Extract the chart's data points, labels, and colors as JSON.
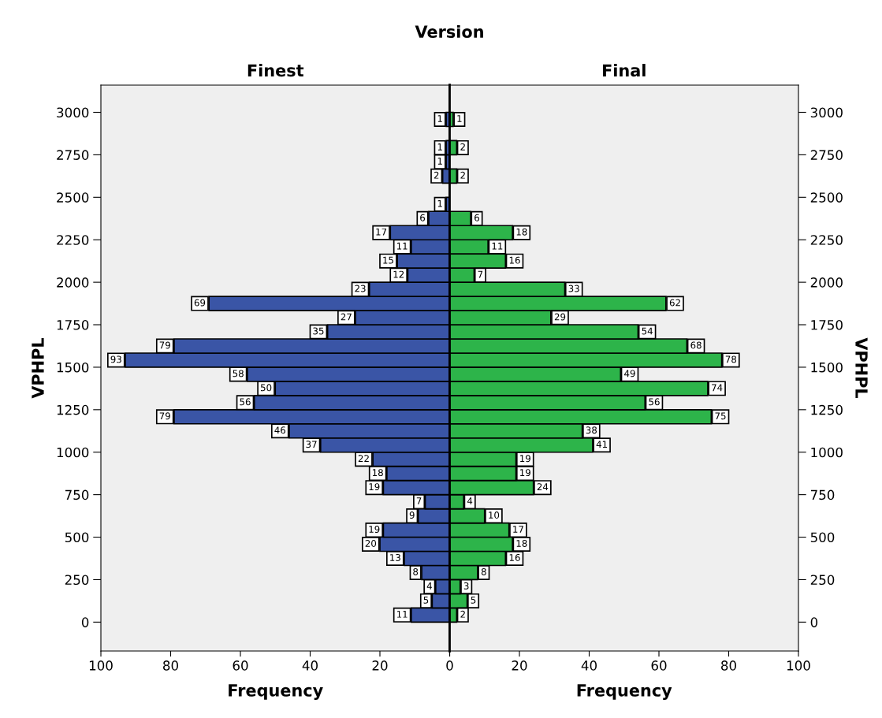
{
  "chart_data": [
    {
      "type": "histogram",
      "orientation": "horizontal",
      "title": "Finest",
      "annotations": [
        "Version"
      ],
      "xlabel": "Frequency",
      "ylabel": "VPHPL",
      "color": "#3a55a6",
      "bins": [
        0,
        83.3,
        166.7,
        250,
        333.3,
        416.7,
        500,
        583.3,
        666.7,
        750,
        833.3,
        916.7,
        1000,
        1083.3,
        1166.7,
        1250,
        1333.3,
        1416.7,
        1500,
        1583.3,
        1666.7,
        1750,
        1833.3,
        1916.7,
        2000,
        2083.3,
        2166.7,
        2250,
        2333.3,
        2416.7,
        2500,
        2583.3,
        2666.7,
        2750,
        2833.3,
        2916.7,
        3000
      ],
      "values": [
        11,
        5,
        4,
        8,
        13,
        20,
        19,
        9,
        7,
        19,
        18,
        22,
        37,
        46,
        79,
        56,
        50,
        58,
        93,
        79,
        35,
        27,
        69,
        23,
        12,
        15,
        11,
        17,
        6,
        1,
        0,
        2,
        1,
        1,
        0,
        1
      ],
      "value_labels": [
        "11",
        "5",
        "4",
        "8",
        "13",
        "20",
        "19",
        "9",
        "7",
        "19",
        "18",
        "22",
        "37",
        "46",
        "79",
        "56",
        "50",
        "58",
        "93",
        "79",
        "35",
        "27",
        "69",
        "23",
        "12",
        "15",
        "11",
        "17",
        "6",
        "1",
        null,
        "2",
        "1",
        "1",
        null,
        "1"
      ],
      "xlim": [
        100,
        0
      ],
      "xticks": [
        100,
        80,
        60,
        40,
        20,
        {
          "value": 0,
          "label": null
        }
      ],
      "ylim": [
        -170,
        3160
      ],
      "yticks": [
        0,
        250,
        500,
        750,
        1000,
        1250,
        1500,
        1750,
        2000,
        2250,
        2500,
        2750,
        3000
      ]
    },
    {
      "type": "histogram",
      "orientation": "horizontal",
      "title": "Final",
      "xlabel": "Frequency",
      "ylabel": "VPHPL",
      "color": "#2db44a",
      "bins": [
        0,
        83.3,
        166.7,
        250,
        333.3,
        416.7,
        500,
        583.3,
        666.7,
        750,
        833.3,
        916.7,
        1000,
        1083.3,
        1166.7,
        1250,
        1333.3,
        1416.7,
        1500,
        1583.3,
        1666.7,
        1750,
        1833.3,
        1916.7,
        2000,
        2083.3,
        2166.7,
        2250,
        2333.3,
        2416.7,
        2500,
        2583.3,
        2666.7,
        2750,
        2833.3,
        2916.7,
        3000
      ],
      "values": [
        2,
        5,
        3,
        8,
        16,
        18,
        17,
        10,
        4,
        24,
        19,
        19,
        41,
        38,
        75,
        56,
        74,
        49,
        78,
        68,
        54,
        29,
        62,
        33,
        7,
        16,
        11,
        18,
        6,
        0,
        0,
        2,
        0,
        2,
        0,
        1
      ],
      "value_labels": [
        "2",
        "5",
        "3",
        "8",
        "16",
        "18",
        "17",
        "10",
        "4",
        "24",
        "19",
        "19",
        "41",
        "38",
        "75",
        "56",
        "74",
        "49",
        "78",
        "68",
        "54",
        "29",
        "62",
        "33",
        "7",
        "16",
        "11",
        "18",
        "6",
        null,
        null,
        "2",
        null,
        "2",
        null,
        "1"
      ],
      "xlim": [
        0,
        100
      ],
      "xticks": [
        0,
        20,
        40,
        60,
        80,
        100
      ],
      "ylim": [
        -170,
        3160
      ],
      "yticks": [
        0,
        250,
        500,
        750,
        1000,
        1250,
        1500,
        1750,
        2000,
        2250,
        2500,
        2750,
        3000
      ]
    }
  ]
}
